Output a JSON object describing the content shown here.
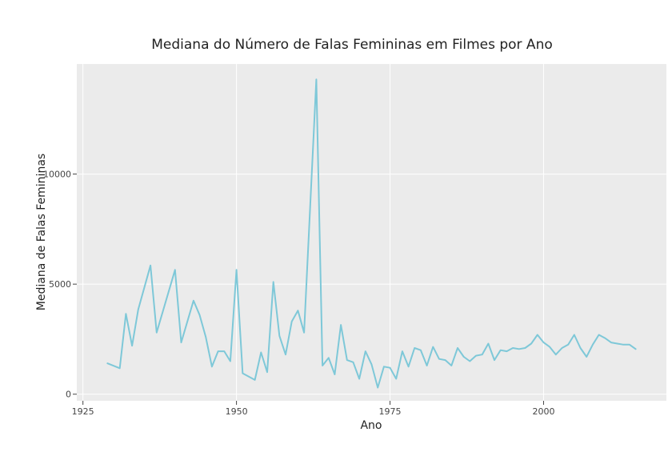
{
  "chart_data": {
    "type": "line",
    "title": "Mediana do Número de Falas Femininas em Filmes por Ano",
    "xlabel": "Ano",
    "ylabel": "Mediana de Falas Femininas",
    "xlim": [
      1924,
      2020
    ],
    "ylim": [
      -300,
      15000
    ],
    "x_ticks": [
      1925,
      1950,
      1975,
      2000
    ],
    "y_ticks": [
      0,
      5000,
      10000
    ],
    "grid": true,
    "legend": "none",
    "colors": {
      "line": "#7ec8d8",
      "plot_bg": "#ebebeb",
      "grid": "#ffffff"
    },
    "series": [
      {
        "x": [
          1929,
          1931,
          1932,
          1933,
          1934,
          1936,
          1937,
          1940,
          1941,
          1943,
          1944,
          1945,
          1946,
          1947,
          1948,
          1949,
          1950,
          1951,
          1953,
          1954,
          1955,
          1956,
          1957,
          1958,
          1959,
          1960,
          1961,
          1963,
          1964,
          1965,
          1966,
          1967,
          1968,
          1969,
          1970,
          1971,
          1972,
          1973,
          1974,
          1975,
          1976,
          1977,
          1978,
          1979,
          1980,
          1981,
          1982,
          1983,
          1984,
          1985,
          1986,
          1987,
          1988,
          1989,
          1990,
          1991,
          1992,
          1993,
          1994,
          1995,
          1996,
          1997,
          1998,
          1999,
          2000,
          2001,
          2002,
          2003,
          2004,
          2005,
          2006,
          2007,
          2008,
          2009,
          2010,
          2011,
          2012,
          2013,
          2014,
          2015
        ],
        "y": [
          1400,
          1180,
          3650,
          2200,
          3850,
          5850,
          2800,
          5650,
          2350,
          4250,
          3600,
          2600,
          1250,
          1950,
          1950,
          1500,
          5650,
          950,
          650,
          1900,
          1000,
          5100,
          2650,
          1800,
          3300,
          3800,
          2800,
          14300,
          1300,
          1650,
          900,
          3150,
          1550,
          1450,
          700,
          1950,
          1350,
          300,
          1250,
          1200,
          700,
          1950,
          1250,
          2100,
          2000,
          1300,
          2150,
          1600,
          1550,
          1300,
          2100,
          1700,
          1500,
          1750,
          1800,
          2300,
          1550,
          2000,
          1950,
          2100,
          2050,
          2100,
          2300,
          2700,
          2350,
          2150,
          1800,
          2100,
          2250,
          2700,
          2100,
          1700,
          2250,
          2700,
          2550,
          2350,
          2300,
          2250,
          2250,
          2050
        ]
      }
    ]
  }
}
